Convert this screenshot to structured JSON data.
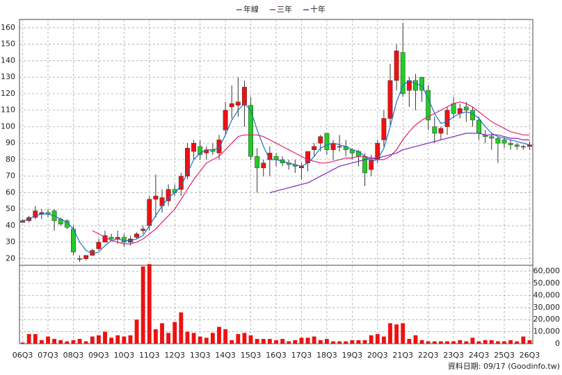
{
  "chart_data": {
    "type": "candlestick",
    "footer": "資料日期: 09/17 (Goodinfo.tw)",
    "categories": [
      "06Q3",
      null,
      null,
      null,
      "07Q3",
      null,
      null,
      null,
      "08Q3",
      null,
      null,
      null,
      "09Q3",
      null,
      null,
      null,
      "10Q3",
      null,
      null,
      null,
      "11Q3",
      null,
      null,
      null,
      "12Q3",
      null,
      null,
      null,
      "13Q3",
      null,
      null,
      null,
      "14Q3",
      null,
      null,
      null,
      "15Q3",
      null,
      null,
      null,
      "16Q3",
      null,
      null,
      null,
      "17Q3",
      null,
      null,
      null,
      "18Q3",
      null,
      null,
      null,
      "19Q3",
      null,
      null,
      null,
      "20Q3",
      null,
      null,
      null,
      "21Q3",
      null,
      null,
      null,
      "22Q3",
      null,
      null,
      null,
      "23Q3",
      null,
      null,
      null,
      "24Q3",
      null,
      null,
      null,
      "25Q3",
      null,
      null,
      null,
      "26Q3"
    ],
    "candles": {
      "up_color": "#ee1111",
      "down_color": "#22cc22",
      "open": [
        42,
        43,
        45,
        47,
        48,
        49,
        44,
        43,
        38,
        20,
        20,
        22,
        26,
        30,
        33,
        32,
        33,
        30,
        33,
        37,
        40,
        56,
        52,
        55,
        62,
        62,
        70,
        85,
        88,
        84,
        86,
        84,
        98,
        112,
        113,
        113,
        113,
        82,
        75,
        80,
        82,
        80,
        78,
        77,
        75,
        78,
        86,
        90,
        96,
        86,
        88,
        88,
        86,
        85,
        82,
        74,
        80,
        92,
        105,
        128,
        145,
        122,
        128,
        130,
        122,
        100,
        96,
        100,
        114,
        108,
        112,
        110,
        104,
        95,
        94,
        93,
        92,
        90,
        89,
        88,
        88
      ],
      "high": [
        44,
        46,
        52,
        50,
        50,
        50,
        45,
        44,
        40,
        22,
        22,
        26,
        32,
        37,
        35,
        37,
        35,
        34,
        36,
        40,
        58,
        71,
        62,
        65,
        65,
        72,
        90,
        92,
        92,
        88,
        90,
        95,
        115,
        125,
        130,
        128,
        118,
        87,
        80,
        88,
        84,
        82,
        80,
        80,
        78,
        85,
        90,
        95,
        96,
        92,
        95,
        92,
        87,
        86,
        84,
        83,
        92,
        110,
        138,
        150,
        163,
        130,
        132,
        130,
        125,
        106,
        100,
        112,
        118,
        114,
        115,
        112,
        106,
        98,
        96,
        94,
        94,
        92,
        90,
        89,
        91
      ],
      "low": [
        42,
        42,
        44,
        44,
        45,
        37,
        40,
        38,
        22,
        18,
        19,
        22,
        25,
        30,
        31,
        29,
        27,
        28,
        32,
        35,
        37,
        45,
        48,
        52,
        58,
        58,
        68,
        80,
        80,
        80,
        83,
        80,
        95,
        105,
        106,
        100,
        80,
        60,
        70,
        70,
        76,
        76,
        74,
        72,
        68,
        73,
        82,
        85,
        83,
        80,
        85,
        82,
        80,
        76,
        64,
        70,
        78,
        88,
        100,
        122,
        118,
        112,
        110,
        115,
        98,
        90,
        92,
        95,
        105,
        105,
        103,
        100,
        92,
        90,
        86,
        78,
        87,
        86,
        86,
        86,
        86
      ],
      "close": [
        43,
        45,
        49,
        48,
        47,
        43,
        41,
        39,
        24,
        20,
        22,
        25,
        30,
        34,
        32,
        33,
        30,
        32,
        35,
        38,
        56,
        58,
        57,
        62,
        60,
        70,
        87,
        90,
        83,
        86,
        85,
        92,
        110,
        114,
        115,
        124,
        82,
        75,
        78,
        84,
        80,
        78,
        77,
        76,
        76,
        85,
        88,
        94,
        86,
        90,
        88,
        86,
        84,
        82,
        72,
        80,
        90,
        105,
        128,
        146,
        120,
        128,
        122,
        122,
        104,
        96,
        99,
        110,
        108,
        111,
        110,
        104,
        96,
        94,
        93,
        90,
        90,
        89,
        88,
        88,
        89
      ]
    },
    "series": [
      {
        "name": "年線",
        "color": "#1e6fc8",
        "values": [
          43,
          44,
          46,
          47,
          47,
          46,
          44,
          42,
          38,
          30,
          25,
          23,
          24,
          28,
          31,
          32,
          31,
          31,
          32,
          34,
          40,
          46,
          52,
          57,
          60,
          64,
          72,
          80,
          84,
          86,
          86,
          87,
          95,
          104,
          110,
          114,
          110,
          98,
          88,
          80,
          80,
          79,
          78,
          77,
          76,
          78,
          82,
          87,
          89,
          90,
          89,
          88,
          86,
          85,
          82,
          79,
          80,
          87,
          100,
          115,
          125,
          128,
          126,
          125,
          117,
          108,
          102,
          103,
          106,
          108,
          109,
          108,
          105,
          100,
          96,
          94,
          93,
          92,
          91,
          90,
          89
        ]
      },
      {
        "name": "三年",
        "color": "#e0206f",
        "values": [
          null,
          null,
          null,
          null,
          null,
          null,
          null,
          null,
          null,
          null,
          null,
          37,
          35,
          33,
          31,
          30,
          29,
          29,
          30,
          32,
          35,
          38,
          42,
          46,
          50,
          56,
          62,
          68,
          73,
          78,
          80,
          82,
          86,
          90,
          94,
          95,
          95,
          95,
          94,
          92,
          90,
          88,
          86,
          84,
          82,
          80,
          79,
          78,
          78,
          79,
          80,
          81,
          81,
          82,
          82,
          81,
          80,
          80,
          82,
          86,
          92,
          97,
          101,
          104,
          106,
          108,
          110,
          112,
          114,
          115,
          114,
          112,
          109,
          106,
          103,
          101,
          99,
          97,
          96,
          95,
          95
        ]
      },
      {
        "name": "十年",
        "color": "#8020c0",
        "values": [
          null,
          null,
          null,
          null,
          null,
          null,
          null,
          null,
          null,
          null,
          null,
          null,
          null,
          null,
          null,
          null,
          null,
          null,
          null,
          null,
          null,
          null,
          null,
          null,
          null,
          null,
          null,
          null,
          null,
          null,
          null,
          null,
          null,
          null,
          null,
          null,
          null,
          null,
          null,
          60,
          61,
          62,
          63,
          64,
          65,
          66,
          68,
          70,
          72,
          74,
          76,
          77,
          78,
          79,
          80,
          81,
          81,
          82,
          83,
          84,
          86,
          87,
          88,
          89,
          90,
          91,
          92,
          93,
          94,
          95,
          96,
          96,
          96,
          95,
          95,
          95,
          94,
          93,
          93,
          92,
          92
        ]
      }
    ],
    "volume": {
      "color": "#ee1111",
      "axis": "y2",
      "values": [
        1000,
        8000,
        8000,
        3000,
        6000,
        4000,
        3000,
        2000,
        3000,
        4000,
        2000,
        6000,
        7000,
        10000,
        5000,
        7000,
        6000,
        7000,
        20000,
        64000,
        66000,
        12000,
        17000,
        9000,
        18000,
        26000,
        10000,
        9000,
        6000,
        5000,
        9000,
        14000,
        12000,
        3000,
        8000,
        9000,
        7000,
        4000,
        4000,
        4000,
        3000,
        4000,
        2000,
        3000,
        5000,
        5000,
        6000,
        3000,
        4000,
        2000,
        2000,
        2000,
        3000,
        3000,
        3000,
        7000,
        8000,
        6000,
        17000,
        16000,
        17000,
        4000,
        7000,
        3000,
        2000,
        2000,
        2000,
        2000,
        2000,
        3000,
        2000,
        5000,
        2000,
        3000,
        3000,
        2000,
        2000,
        3000,
        2000,
        6000,
        3000
      ]
    },
    "ylim": [
      16,
      165
    ],
    "yticks": [
      20,
      30,
      40,
      50,
      60,
      70,
      80,
      90,
      100,
      110,
      120,
      130,
      140,
      150,
      160
    ],
    "y2lim": [
      0,
      65000
    ],
    "y2ticks": [
      0,
      {
        "value": 10000,
        "label": "10,000"
      },
      {
        "value": 20000,
        "label": "20,000"
      },
      {
        "value": 30000,
        "label": "30,000"
      },
      {
        "value": 40000,
        "label": "40,000"
      },
      {
        "value": 50000,
        "label": "50,000"
      },
      {
        "value": 60000,
        "label": "60,000"
      }
    ],
    "grid": true
  }
}
